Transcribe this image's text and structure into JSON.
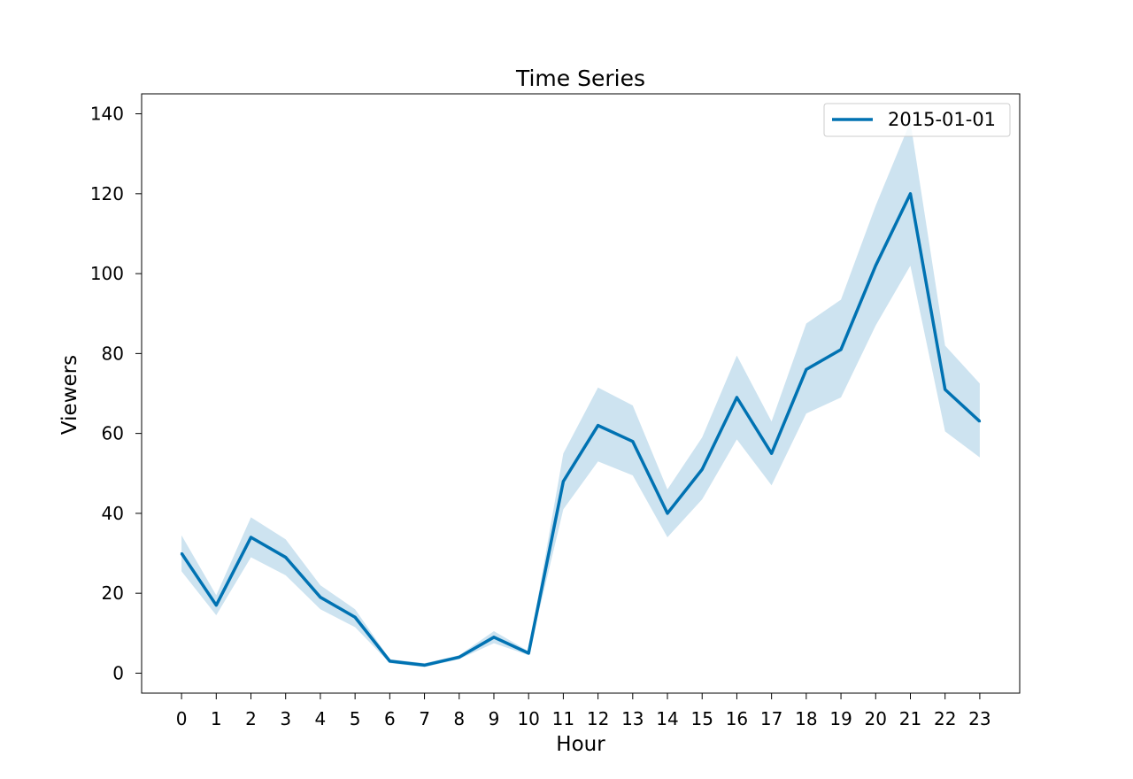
{
  "chart_data": {
    "type": "line",
    "title": "Time Series",
    "xlabel": "Hour",
    "ylabel": "Viewers",
    "x": [
      0,
      1,
      2,
      3,
      4,
      5,
      6,
      7,
      8,
      9,
      10,
      11,
      12,
      13,
      14,
      15,
      16,
      17,
      18,
      19,
      20,
      21,
      22,
      23
    ],
    "xlim": [
      -1.15,
      24.15
    ],
    "ylim": [
      -5,
      145
    ],
    "yticks": [
      0,
      20,
      40,
      60,
      80,
      100,
      120,
      140
    ],
    "grid": false,
    "legend_position": "top-right",
    "series": [
      {
        "name": "2015-01-01",
        "color": "#0072B2",
        "band_color": "#cde3f0",
        "values": [
          30,
          17,
          34,
          29,
          19,
          14,
          3,
          2,
          4,
          9,
          5,
          48,
          62,
          58,
          40,
          51,
          69,
          55,
          76,
          81,
          102,
          120,
          71,
          63
        ],
        "lower": [
          25.5,
          14.5,
          29,
          24.5,
          16,
          11.5,
          2.5,
          1.5,
          3.5,
          7.5,
          4.5,
          41,
          53,
          49.5,
          34,
          43.5,
          58.5,
          47,
          65,
          69,
          87,
          102,
          60.5,
          54
        ],
        "upper": [
          34.5,
          19.5,
          39,
          33.5,
          22,
          16,
          3.5,
          2.5,
          4.5,
          10.5,
          5.5,
          55,
          71.5,
          67,
          46,
          59,
          79.5,
          63,
          87.5,
          93.5,
          117,
          138,
          82,
          72.5
        ]
      }
    ]
  }
}
